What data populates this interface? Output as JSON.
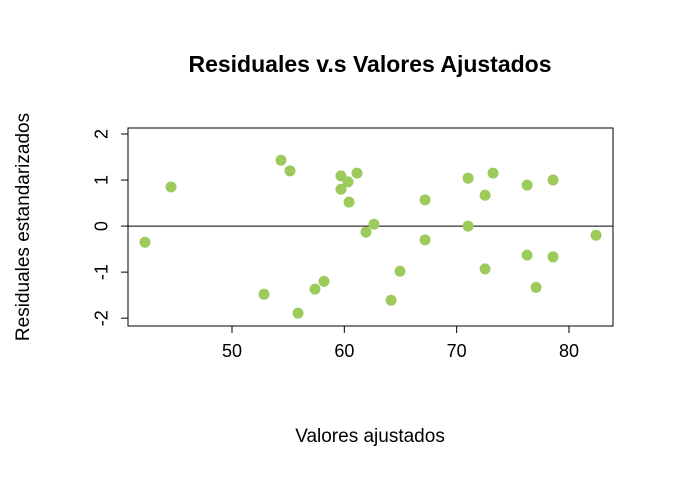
{
  "chart_data": {
    "type": "scatter",
    "title": "Residuales v.s Valores Ajustados",
    "x_label": "Valores ajustados",
    "y_label": "Residuales estandarizados",
    "color": "#9ccb5c",
    "xlim": [
      40.74,
      83.92
    ],
    "ylim": [
      -2.17,
      2.13
    ],
    "xticks": [
      50,
      60,
      70,
      80
    ],
    "yticks": [
      -2,
      -1,
      0,
      1,
      2
    ],
    "hline": 0,
    "x": [
      42.25,
      44.57,
      52.85,
      54.36,
      55.16,
      55.88,
      57.39,
      58.19,
      59.7,
      59.7,
      60.33,
      60.42,
      61.13,
      61.93,
      62.64,
      64.16,
      64.96,
      67.19,
      67.19,
      71.02,
      71.02,
      72.53,
      72.53,
      73.24,
      76.27,
      76.27,
      77.07,
      78.58,
      78.58,
      82.41
    ],
    "values": [
      -0.35,
      0.85,
      -1.48,
      1.43,
      1.2,
      -1.89,
      -1.37,
      -1.2,
      1.09,
      0.8,
      0.96,
      0.52,
      1.15,
      -0.13,
      0.04,
      -1.61,
      -0.98,
      0.57,
      -0.3,
      1.04,
      0.0,
      0.67,
      -0.93,
      1.15,
      0.89,
      -0.63,
      -1.33,
      1.0,
      -0.67,
      -0.2
    ]
  }
}
